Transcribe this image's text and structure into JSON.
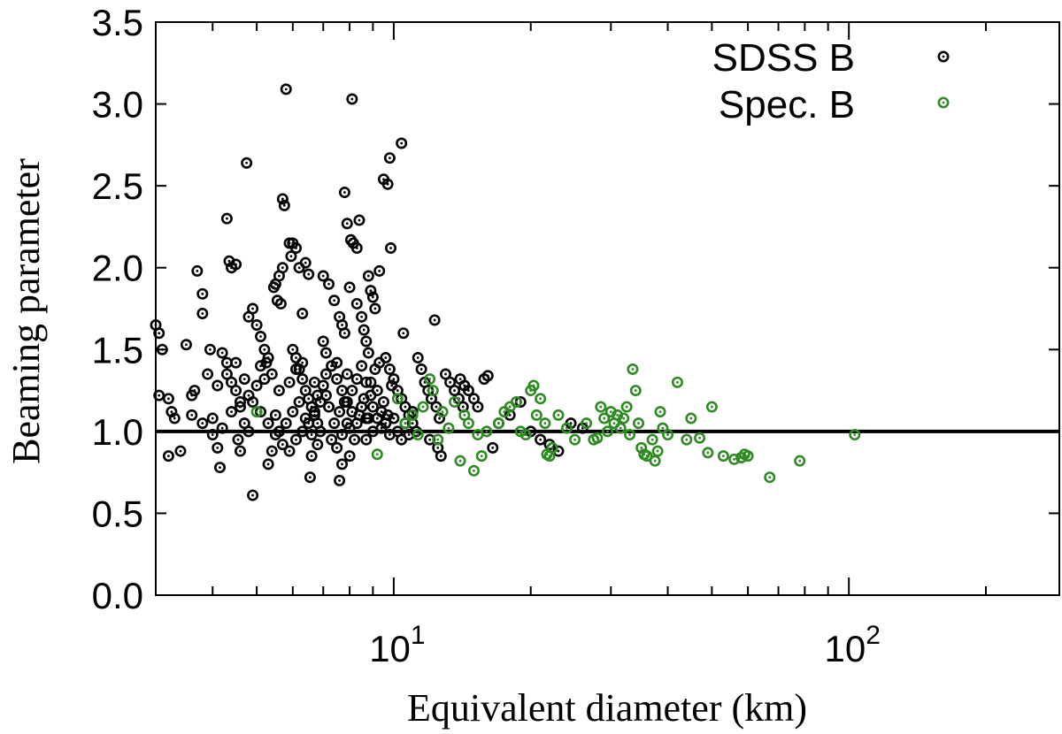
{
  "chart_data": {
    "type": "scatter",
    "xlabel": "Equivalent diameter (km)",
    "ylabel": "Beaming parameter",
    "xscale": "log",
    "xlim": [
      3.0,
      290
    ],
    "ylim": [
      0.0,
      3.5
    ],
    "yticks": [
      "0.0",
      "0.5",
      "1.0",
      "1.5",
      "2.0",
      "2.5",
      "3.0",
      "3.5"
    ],
    "xticks": [
      {
        "value": 10,
        "base": "10",
        "exp": "1"
      },
      {
        "value": 100,
        "base": "10",
        "exp": "2"
      }
    ],
    "grid": false,
    "legend_position": "top-right",
    "reference_line": {
      "y": 1.0
    },
    "series": [
      {
        "name": "SDSS B",
        "color": "#000000",
        "marker": "circle-dot",
        "points": [
          [
            3.0,
            1.65
          ],
          [
            3.05,
            1.6
          ],
          [
            3.1,
            1.5
          ],
          [
            3.05,
            1.22
          ],
          [
            3.2,
            1.2
          ],
          [
            3.25,
            1.12
          ],
          [
            3.3,
            1.08
          ],
          [
            3.2,
            0.85
          ],
          [
            3.4,
            0.88
          ],
          [
            3.5,
            1.53
          ],
          [
            3.6,
            1.22
          ],
          [
            3.65,
            1.25
          ],
          [
            3.7,
            1.98
          ],
          [
            3.8,
            1.84
          ],
          [
            3.8,
            1.72
          ],
          [
            3.9,
            1.35
          ],
          [
            3.95,
            1.5
          ],
          [
            4.0,
            1.08
          ],
          [
            4.1,
            0.9
          ],
          [
            4.15,
            0.78
          ],
          [
            4.3,
            2.3
          ],
          [
            4.35,
            2.04
          ],
          [
            4.4,
            2.0
          ],
          [
            4.5,
            2.02
          ],
          [
            4.2,
            1.48
          ],
          [
            4.3,
            1.42
          ],
          [
            4.4,
            1.3
          ],
          [
            4.5,
            1.25
          ],
          [
            4.6,
            1.15
          ],
          [
            4.7,
            1.05
          ],
          [
            4.8,
            1.0
          ],
          [
            4.55,
            0.95
          ],
          [
            4.6,
            0.88
          ],
          [
            4.75,
            2.64
          ],
          [
            4.8,
            1.7
          ],
          [
            4.9,
            1.75
          ],
          [
            5.0,
            1.65
          ],
          [
            5.1,
            1.58
          ],
          [
            5.2,
            1.5
          ],
          [
            5.25,
            1.42
          ],
          [
            4.9,
            0.61
          ],
          [
            5.3,
            0.8
          ],
          [
            5.4,
            0.88
          ],
          [
            5.45,
            1.88
          ],
          [
            5.5,
            1.9
          ],
          [
            5.6,
            1.95
          ],
          [
            5.7,
            2.0
          ],
          [
            5.55,
            1.8
          ],
          [
            5.65,
            1.78
          ],
          [
            5.8,
            3.09
          ],
          [
            5.7,
            2.42
          ],
          [
            5.75,
            2.38
          ],
          [
            5.9,
            2.15
          ],
          [
            6.0,
            2.15
          ],
          [
            6.1,
            2.12
          ],
          [
            5.95,
            2.07
          ],
          [
            6.2,
            2.0
          ],
          [
            6.4,
            2.03
          ],
          [
            6.5,
            1.96
          ],
          [
            6.3,
            1.72
          ],
          [
            6.0,
            1.5
          ],
          [
            6.1,
            1.45
          ],
          [
            6.2,
            1.38
          ],
          [
            6.3,
            1.32
          ],
          [
            6.4,
            1.25
          ],
          [
            6.5,
            1.2
          ],
          [
            6.6,
            1.15
          ],
          [
            6.7,
            1.1
          ],
          [
            6.8,
            1.05
          ],
          [
            6.9,
            1.0
          ],
          [
            6.55,
            0.72
          ],
          [
            6.6,
            0.85
          ],
          [
            6.8,
            0.92
          ],
          [
            7.0,
            1.95
          ],
          [
            7.2,
            1.9
          ],
          [
            7.4,
            1.8
          ],
          [
            7.6,
            1.7
          ],
          [
            7.7,
            1.65
          ],
          [
            7.8,
            1.6
          ],
          [
            7.0,
            1.55
          ],
          [
            7.1,
            1.48
          ],
          [
            7.3,
            1.4
          ],
          [
            7.5,
            1.32
          ],
          [
            7.7,
            1.25
          ],
          [
            7.9,
            1.18
          ],
          [
            8.1,
            1.12
          ],
          [
            8.3,
            1.05
          ],
          [
            7.6,
            0.7
          ],
          [
            7.7,
            0.8
          ],
          [
            8.0,
            0.85
          ],
          [
            7.8,
            2.46
          ],
          [
            7.9,
            2.27
          ],
          [
            8.05,
            2.17
          ],
          [
            8.15,
            2.15
          ],
          [
            8.3,
            2.12
          ],
          [
            8.1,
            3.03
          ],
          [
            8.4,
            2.29
          ],
          [
            8.0,
            1.88
          ],
          [
            8.3,
            1.78
          ],
          [
            8.5,
            1.7
          ],
          [
            8.6,
            1.62
          ],
          [
            8.7,
            1.55
          ],
          [
            8.8,
            1.48
          ],
          [
            8.5,
            1.4
          ],
          [
            8.7,
            1.3
          ],
          [
            8.9,
            1.22
          ],
          [
            9.0,
            1.15
          ],
          [
            9.2,
            1.08
          ],
          [
            9.4,
            1.02
          ],
          [
            8.7,
            0.95
          ],
          [
            8.8,
            1.95
          ],
          [
            8.9,
            1.86
          ],
          [
            9.0,
            1.82
          ],
          [
            9.3,
            1.98
          ],
          [
            9.1,
            1.75
          ],
          [
            9.5,
            2.54
          ],
          [
            9.7,
            2.51
          ],
          [
            9.8,
            2.67
          ],
          [
            9.85,
            2.12
          ],
          [
            10.4,
            2.76
          ],
          [
            9.6,
            1.45
          ],
          [
            9.8,
            1.38
          ],
          [
            10.0,
            1.32
          ],
          [
            10.2,
            1.25
          ],
          [
            10.4,
            1.2
          ],
          [
            10.6,
            1.15
          ],
          [
            10.8,
            1.1
          ],
          [
            11.0,
            1.05
          ],
          [
            10.5,
            1.6
          ],
          [
            11.3,
            1.45
          ],
          [
            11.5,
            1.38
          ],
          [
            11.7,
            1.3
          ],
          [
            11.9,
            1.25
          ],
          [
            12.1,
            1.2
          ],
          [
            12.4,
            1.15
          ],
          [
            12.6,
            1.08
          ],
          [
            12.0,
            0.95
          ],
          [
            12.5,
            0.9
          ],
          [
            12.7,
            0.85
          ],
          [
            12.3,
            1.68
          ],
          [
            13.0,
            1.35
          ],
          [
            13.3,
            1.3
          ],
          [
            13.6,
            1.25
          ],
          [
            13.9,
            1.2
          ],
          [
            14.2,
            1.15
          ],
          [
            14.0,
            1.32
          ],
          [
            14.3,
            1.28
          ],
          [
            14.6,
            1.25
          ],
          [
            15.0,
            1.2
          ],
          [
            15.3,
            1.15
          ],
          [
            15.8,
            1.32
          ],
          [
            16.1,
            1.34
          ],
          [
            16.5,
            0.9
          ],
          [
            17.0,
            1.05
          ],
          [
            18.0,
            1.1
          ],
          [
            19.0,
            1.18
          ],
          [
            20.0,
            1.0
          ],
          [
            21.0,
            0.95
          ],
          [
            22.0,
            0.92
          ],
          [
            23.0,
            0.88
          ],
          [
            24.5,
            1.05
          ],
          [
            26.0,
            1.02
          ],
          [
            3.6,
            1.1
          ],
          [
            3.8,
            1.05
          ],
          [
            4.0,
            0.98
          ],
          [
            4.2,
            1.02
          ],
          [
            4.4,
            1.12
          ],
          [
            4.6,
            1.18
          ],
          [
            4.8,
            1.22
          ],
          [
            5.0,
            1.28
          ],
          [
            5.2,
            1.32
          ],
          [
            5.4,
            1.35
          ],
          [
            5.5,
            1.1
          ],
          [
            5.6,
            1.0
          ],
          [
            5.8,
            1.05
          ],
          [
            6.0,
            1.12
          ],
          [
            6.2,
            1.18
          ],
          [
            6.4,
            1.08
          ],
          [
            6.6,
            0.98
          ],
          [
            6.8,
            1.22
          ],
          [
            7.0,
            1.28
          ],
          [
            7.2,
            1.15
          ],
          [
            7.4,
            1.05
          ],
          [
            7.6,
            1.12
          ],
          [
            7.8,
            1.18
          ],
          [
            8.0,
            1.02
          ],
          [
            8.2,
            0.95
          ],
          [
            8.4,
            1.1
          ],
          [
            8.6,
            1.2
          ],
          [
            8.8,
            1.08
          ],
          [
            9.0,
            1.0
          ],
          [
            9.2,
            1.25
          ],
          [
            9.4,
            1.12
          ],
          [
            9.6,
            1.05
          ],
          [
            9.8,
            0.98
          ],
          [
            10.0,
            1.08
          ],
          [
            10.2,
            1.0
          ],
          [
            10.4,
            0.95
          ],
          [
            10.6,
            1.05
          ],
          [
            10.8,
            0.98
          ],
          [
            11.0,
            1.12
          ],
          [
            11.2,
            1.0
          ],
          [
            5.1,
            1.4
          ],
          [
            5.3,
            1.45
          ],
          [
            5.6,
            1.25
          ],
          [
            5.9,
            1.3
          ],
          [
            6.1,
            1.38
          ],
          [
            6.3,
            1.42
          ],
          [
            6.7,
            1.3
          ],
          [
            7.1,
            1.35
          ],
          [
            7.5,
            1.42
          ],
          [
            7.9,
            1.35
          ],
          [
            4.1,
            1.28
          ],
          [
            4.3,
            1.35
          ],
          [
            4.5,
            1.42
          ],
          [
            4.7,
            1.32
          ],
          [
            4.9,
            1.18
          ],
          [
            5.1,
            1.12
          ],
          [
            5.3,
            1.05
          ],
          [
            5.5,
            0.98
          ],
          [
            5.7,
            0.92
          ],
          [
            5.9,
            0.88
          ],
          [
            6.1,
            0.95
          ],
          [
            6.3,
            1.0
          ],
          [
            6.5,
            1.05
          ],
          [
            6.7,
            1.12
          ],
          [
            6.9,
            1.18
          ],
          [
            7.1,
            1.22
          ],
          [
            7.3,
            0.95
          ],
          [
            7.5,
            0.9
          ],
          [
            7.7,
            0.98
          ],
          [
            7.9,
            1.05
          ],
          [
            8.1,
            1.25
          ],
          [
            8.3,
            1.32
          ],
          [
            8.5,
            1.15
          ],
          [
            8.7,
            1.08
          ],
          [
            8.9,
            1.3
          ],
          [
            9.1,
            1.38
          ],
          [
            9.3,
            1.42
          ],
          [
            9.5,
            1.18
          ],
          [
            9.7,
            1.1
          ],
          [
            9.9,
            1.28
          ]
        ]
      },
      {
        "name": "Spec. B",
        "color": "#2e8b22",
        "marker": "circle-dot",
        "points": [
          [
            5.0,
            1.12
          ],
          [
            9.2,
            0.86
          ],
          [
            10.2,
            1.2
          ],
          [
            10.6,
            1.05
          ],
          [
            11.0,
            1.1
          ],
          [
            11.3,
            0.98
          ],
          [
            11.6,
            1.15
          ],
          [
            12.0,
            1.32
          ],
          [
            12.2,
            1.25
          ],
          [
            12.5,
            0.95
          ],
          [
            12.8,
            1.12
          ],
          [
            13.2,
            1.02
          ],
          [
            13.6,
            1.18
          ],
          [
            14.0,
            0.82
          ],
          [
            14.3,
            1.1
          ],
          [
            14.6,
            1.05
          ],
          [
            15.0,
            0.76
          ],
          [
            15.3,
            0.98
          ],
          [
            15.6,
            0.85
          ],
          [
            16.0,
            1.0
          ],
          [
            17.0,
            1.05
          ],
          [
            17.5,
            1.12
          ],
          [
            18.0,
            1.15
          ],
          [
            18.6,
            1.18
          ],
          [
            19.0,
            1.0
          ],
          [
            19.5,
            0.98
          ],
          [
            20.0,
            1.25
          ],
          [
            20.3,
            1.28
          ],
          [
            20.6,
            1.1
          ],
          [
            21.0,
            1.2
          ],
          [
            21.5,
            1.05
          ],
          [
            21.7,
            0.86
          ],
          [
            22.0,
            0.85
          ],
          [
            22.3,
            0.9
          ],
          [
            23.0,
            1.1
          ],
          [
            24.0,
            1.02
          ],
          [
            25.0,
            0.95
          ],
          [
            26.5,
            1.05
          ],
          [
            27.5,
            0.95
          ],
          [
            28.0,
            0.96
          ],
          [
            28.5,
            1.15
          ],
          [
            29.0,
            1.08
          ],
          [
            29.5,
            1.0
          ],
          [
            30.0,
            1.12
          ],
          [
            30.5,
            1.05
          ],
          [
            31.0,
            1.1
          ],
          [
            31.5,
            1.02
          ],
          [
            32.0,
            1.08
          ],
          [
            32.5,
            1.15
          ],
          [
            33.0,
            0.98
          ],
          [
            33.5,
            1.38
          ],
          [
            34.0,
            1.25
          ],
          [
            34.5,
            1.05
          ],
          [
            35.0,
            0.9
          ],
          [
            35.5,
            0.86
          ],
          [
            36.0,
            0.85
          ],
          [
            37.0,
            0.95
          ],
          [
            37.5,
            0.82
          ],
          [
            38.0,
            0.88
          ],
          [
            38.5,
            1.12
          ],
          [
            39.0,
            1.02
          ],
          [
            40.0,
            0.98
          ],
          [
            42.0,
            1.3
          ],
          [
            44.0,
            0.95
          ],
          [
            45.0,
            1.08
          ],
          [
            47.0,
            0.96
          ],
          [
            49.0,
            0.87
          ],
          [
            50.0,
            1.15
          ],
          [
            53.0,
            0.85
          ],
          [
            56.0,
            0.83
          ],
          [
            58.0,
            0.84
          ],
          [
            59.0,
            0.86
          ],
          [
            60.0,
            0.85
          ],
          [
            67.0,
            0.72
          ],
          [
            78.0,
            0.82
          ],
          [
            103.0,
            0.98
          ]
        ]
      }
    ]
  }
}
